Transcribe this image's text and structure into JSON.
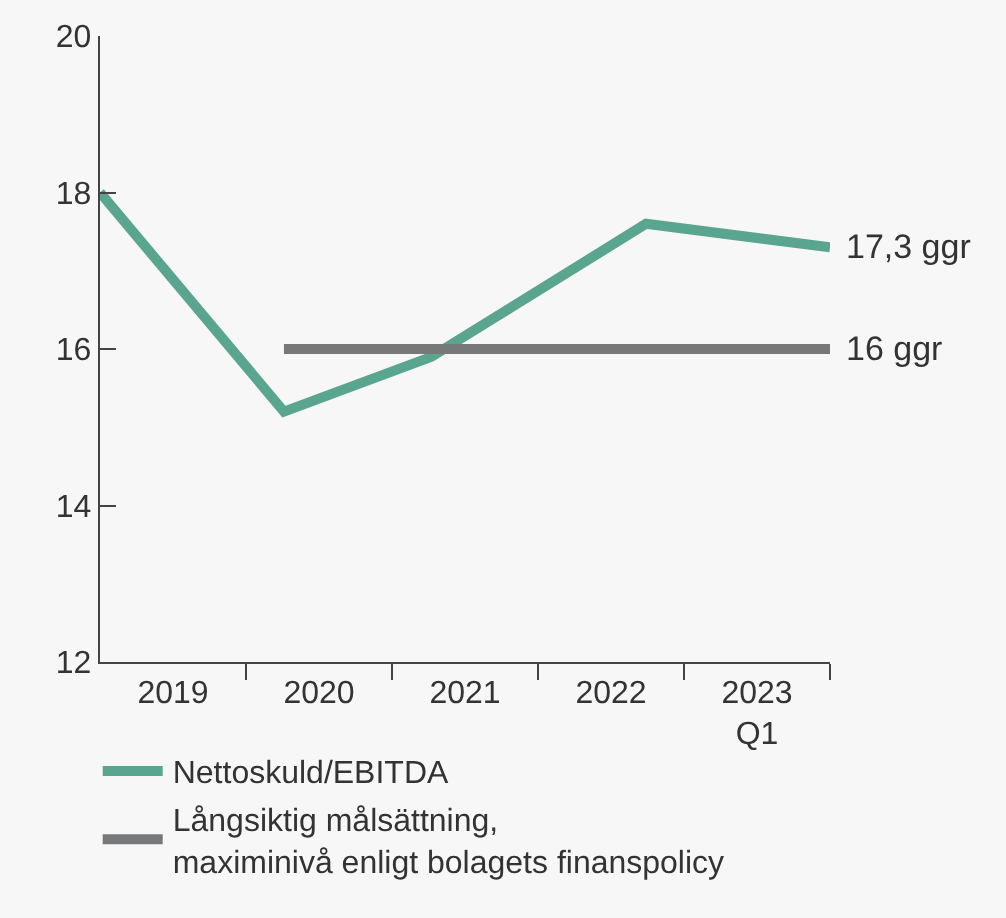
{
  "chart_data": {
    "type": "line",
    "xlim": [
      2018.5,
      2023.5
    ],
    "xticks": [
      {
        "value": 2019,
        "label": "2019"
      },
      {
        "value": 2020,
        "label": "2020"
      },
      {
        "value": 2021,
        "label": "2021"
      },
      {
        "value": 2022,
        "label": "2022"
      },
      {
        "value": 2023,
        "label": "2023\nQ1"
      },
      {
        "value": 2019.5,
        "label": null
      },
      {
        "value": 2020.5,
        "label": null
      },
      {
        "value": 2021.5,
        "label": null
      },
      {
        "value": 2022.5,
        "label": null
      },
      {
        "value": 2023.5,
        "label": null
      }
    ],
    "ylim": [
      12,
      20
    ],
    "yticks": [
      12,
      14,
      16,
      18,
      20
    ],
    "series": [
      {
        "name": "Nettoskuld/EBITDA",
        "color": "#5aa58f",
        "x": [
          2018.5,
          2019.76,
          2020.77,
          2022.24,
          2023.5
        ],
        "values": [
          18,
          15.2,
          15.9,
          17.6,
          17.3
        ]
      },
      {
        "name": "Långsiktig målsättning,\nmaximinivå enligt bolagets finanspolicy",
        "color": "#76787a",
        "x": [
          2019.76,
          2023.5
        ],
        "values": [
          16,
          16
        ]
      }
    ],
    "annotations": [
      {
        "text": "17,3 ggr",
        "x": 2023.5,
        "y": 17.3
      },
      {
        "text": "16 ggr",
        "x": 2023.5,
        "y": 16
      }
    ],
    "grid": false,
    "legend": "bottom",
    "marker": "none",
    "line_style": "solid"
  }
}
